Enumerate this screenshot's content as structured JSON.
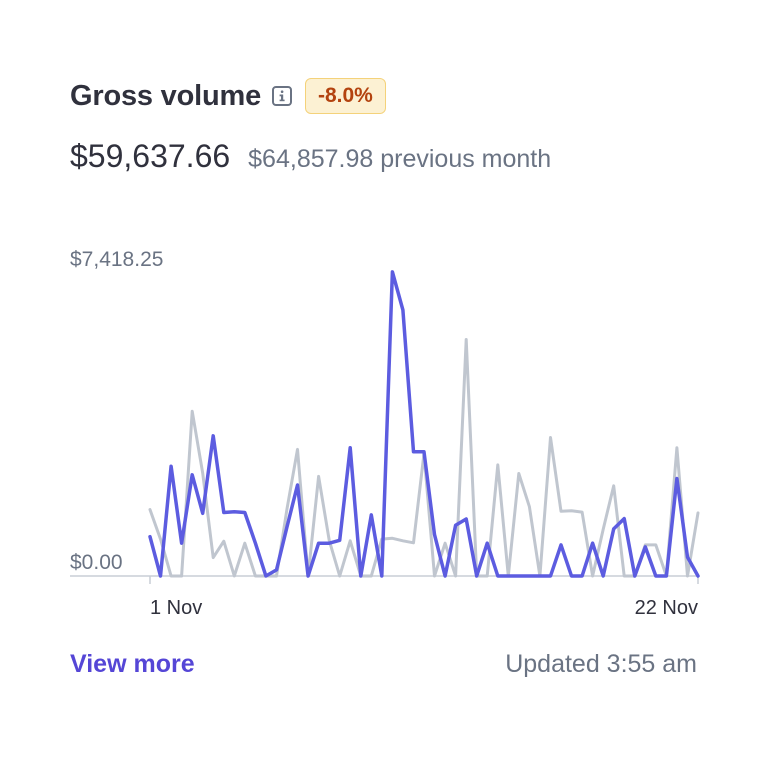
{
  "header": {
    "title": "Gross volume",
    "change_badge": "-8.0%",
    "amount": "$59,637.66",
    "previous": "$64,857.98 previous month"
  },
  "icons": {
    "info": "info-icon"
  },
  "footer": {
    "view_more": "View more",
    "updated": "Updated 3:55 am"
  },
  "colors": {
    "current": "#5c5ce0",
    "previous": "#c0c6cf",
    "axis": "#c9ced6",
    "badge_bg": "#fcf1d3",
    "badge_border": "#f4d27a",
    "badge_text": "#b3430f",
    "link": "#5546d6"
  },
  "chart_data": {
    "type": "line",
    "title": "",
    "xlabel": "",
    "ylabel": "",
    "ylim": [
      0,
      7418.25
    ],
    "y_tick_labels": [
      "$0.00",
      "$7,418.25"
    ],
    "x_tick_labels": [
      "1 Nov",
      "22 Nov"
    ],
    "grid": false,
    "legend": "none",
    "series": [
      {
        "values": [
          960,
          0,
          2680,
          800,
          2470,
          1530,
          3420,
          1550,
          1570,
          1550,
          800,
          0,
          150,
          1200,
          2220,
          0,
          800,
          800,
          870,
          3130,
          0,
          1490,
          0,
          7420,
          6490,
          3030,
          3030,
          1010,
          0,
          1240,
          1390,
          0,
          800,
          0,
          0,
          0,
          0,
          0,
          0,
          760,
          0,
          0,
          800,
          0,
          1150,
          1400,
          0,
          710,
          0,
          0,
          2380,
          460,
          0
        ]
      },
      {
        "values": [
          1620,
          900,
          0,
          0,
          4020,
          2510,
          450,
          850,
          0,
          800,
          0,
          0,
          0,
          1640,
          3090,
          0,
          2430,
          870,
          0,
          860,
          0,
          0,
          900,
          920,
          860,
          810,
          2990,
          0,
          800,
          0,
          5770,
          0,
          0,
          2710,
          0,
          2500,
          1690,
          0,
          3380,
          1580,
          1590,
          1560,
          0,
          1140,
          2200,
          0,
          0,
          760,
          760,
          0,
          3130,
          0,
          1540
        ]
      }
    ]
  }
}
